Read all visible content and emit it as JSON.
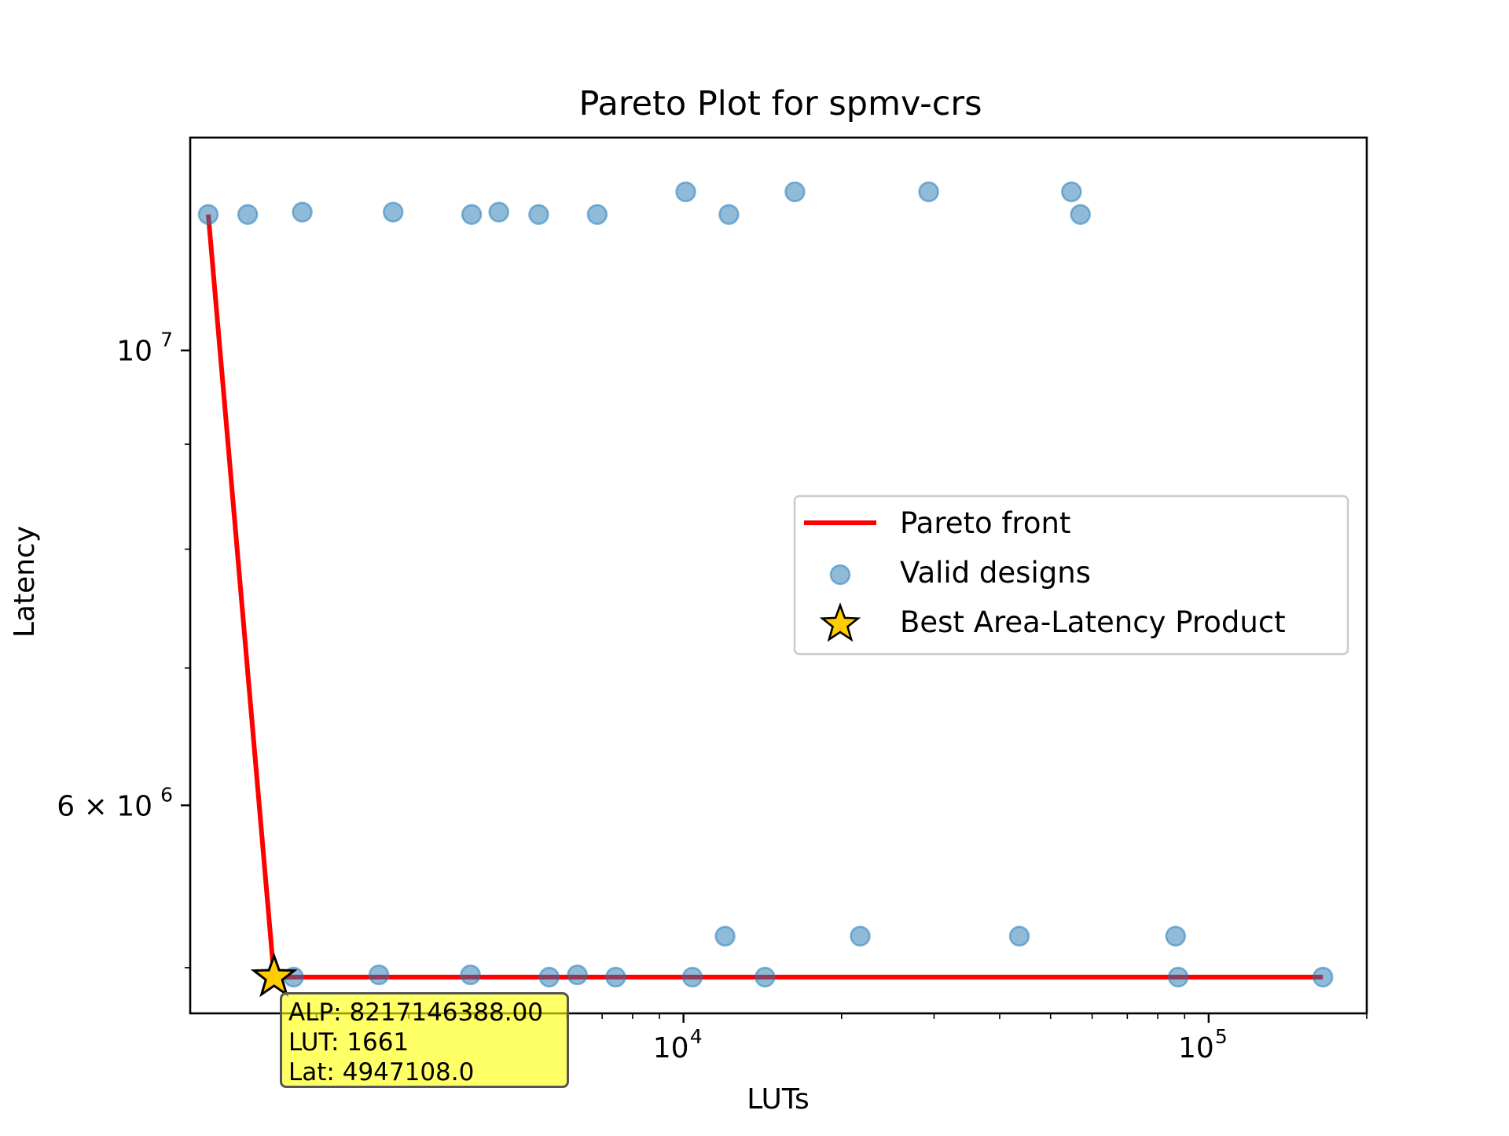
{
  "chart_data": {
    "type": "scatter",
    "title": "Pareto Plot for spmv-crs",
    "xlabel": "LUTs",
    "ylabel": "Latency",
    "xscale": "log",
    "yscale": "log",
    "xlim": [
      1150,
      200000
    ],
    "ylim": [
      4750000,
      12700000
    ],
    "grid": false,
    "legend_position": "center-right",
    "x_tick_labels": [
      {
        "value": 10000,
        "label": "10",
        "exp": "4"
      },
      {
        "value": 100000,
        "label": "10",
        "exp": "5"
      }
    ],
    "y_tick_labels": [
      {
        "value": 6000000,
        "label": "6 × 10",
        "exp": "6"
      },
      {
        "value": 10000000,
        "label": "10",
        "exp": "7"
      }
    ],
    "series": [
      {
        "name": "Pareto front",
        "type": "line",
        "color": "#ff0000",
        "points": [
          [
            1245,
            11650000
          ],
          [
            1661,
            4947108
          ],
          [
            165000,
            4947108
          ]
        ]
      },
      {
        "name": "Valid designs",
        "type": "scatter",
        "color": "#1f77b4",
        "points": [
          [
            1245,
            11650000
          ],
          [
            1480,
            11650000
          ],
          [
            1880,
            11680000
          ],
          [
            2800,
            11680000
          ],
          [
            3950,
            11650000
          ],
          [
            4450,
            11680000
          ],
          [
            5300,
            11650000
          ],
          [
            6850,
            11650000
          ],
          [
            10100,
            11950000
          ],
          [
            12200,
            11650000
          ],
          [
            16300,
            11950000
          ],
          [
            29300,
            11950000
          ],
          [
            54800,
            11950000
          ],
          [
            57000,
            11650000
          ],
          [
            1810,
            4947108
          ],
          [
            2630,
            4960000
          ],
          [
            3930,
            4960000
          ],
          [
            5550,
            4947108
          ],
          [
            6280,
            4960000
          ],
          [
            7430,
            4947108
          ],
          [
            10400,
            4947108
          ],
          [
            12000,
            5180000
          ],
          [
            14300,
            4947108
          ],
          [
            21700,
            5180000
          ],
          [
            43600,
            5180000
          ],
          [
            86500,
            5180000
          ],
          [
            87500,
            4947108
          ],
          [
            165000,
            4947108
          ]
        ]
      },
      {
        "name": "Best Area-Latency Product",
        "type": "marker",
        "marker": "star",
        "color": "#ffcc00",
        "points": [
          [
            1661,
            4947108
          ]
        ]
      }
    ],
    "annotation": {
      "lines": [
        "ALP: 8217146388.00",
        "LUT: 1661",
        "Lat: 4947108.0"
      ]
    }
  }
}
